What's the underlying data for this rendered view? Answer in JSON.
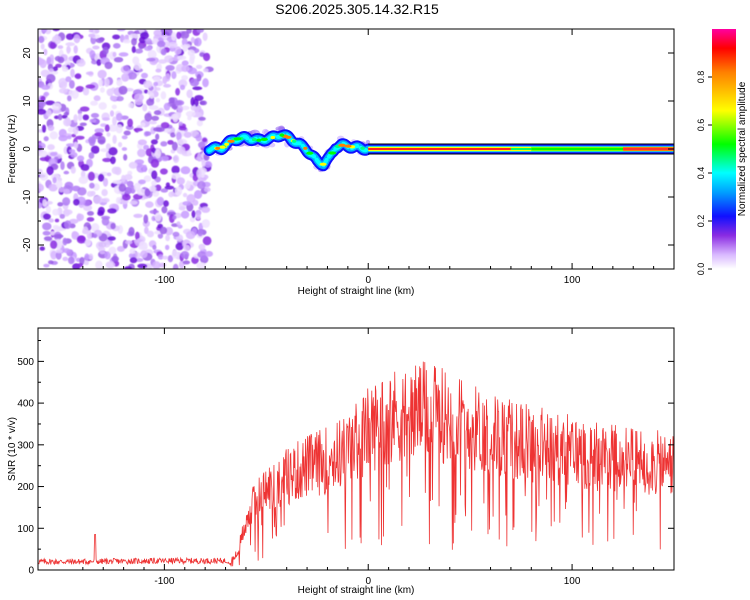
{
  "title": "S206.2025.305.14.32.R15",
  "chart_data": [
    {
      "type": "heatmap",
      "name": "spectrogram",
      "xlabel": "Height of straight line (km)",
      "ylabel": "Frequency (Hz)",
      "xlim": [
        -162,
        150
      ],
      "ylim": [
        -25,
        25
      ],
      "xticks": [
        -100,
        0,
        100
      ],
      "yticks": [
        -20,
        -10,
        0,
        10,
        20
      ],
      "ridge_x": [
        -78,
        -72,
        -66,
        -60,
        -54,
        -48,
        -43,
        -39,
        -35,
        -31,
        -28,
        -25,
        -22,
        -19,
        -16,
        -13,
        -10,
        -7,
        -4,
        0,
        150
      ],
      "ridge_freq": [
        0.0,
        0.2,
        2.0,
        2.3,
        1.8,
        2.2,
        3.0,
        2.4,
        1.2,
        0.2,
        -1.2,
        -2.6,
        -3.2,
        -1.8,
        0.4,
        0.8,
        0.6,
        0.4,
        0.2,
        0.0,
        0.0
      ],
      "noise_region_x": [
        -162,
        -78
      ],
      "colorbar": {
        "label": "Normalized spectral amplitude",
        "range": [
          0,
          1
        ],
        "ticks": [
          "0.0",
          "0.2",
          "0.4",
          "0.6",
          "0.8"
        ]
      }
    },
    {
      "type": "line",
      "name": "snr",
      "xlabel": "Height of straight line (km)",
      "ylabel": "SNR (10 * v/v)",
      "xlim": [
        -162,
        150
      ],
      "ylim": [
        0,
        580
      ],
      "xticks": [
        -100,
        0,
        100
      ],
      "yticks": [
        0,
        100,
        200,
        300,
        400,
        500
      ],
      "color": "#ee3333",
      "envelope_x": [
        -162,
        -140,
        -100,
        -80,
        -68,
        -64,
        -60,
        -55,
        -50,
        -45,
        -40,
        -30,
        -20,
        -10,
        0,
        10,
        20,
        25,
        30,
        40,
        50,
        60,
        70,
        80,
        90,
        100,
        110,
        120,
        130,
        140,
        150
      ],
      "envelope_y": [
        20,
        20,
        22,
        22,
        22,
        50,
        150,
        210,
        240,
        260,
        280,
        310,
        330,
        360,
        420,
        460,
        470,
        480,
        470,
        460,
        430,
        410,
        390,
        380,
        365,
        355,
        345,
        340,
        330,
        320,
        315
      ]
    }
  ]
}
